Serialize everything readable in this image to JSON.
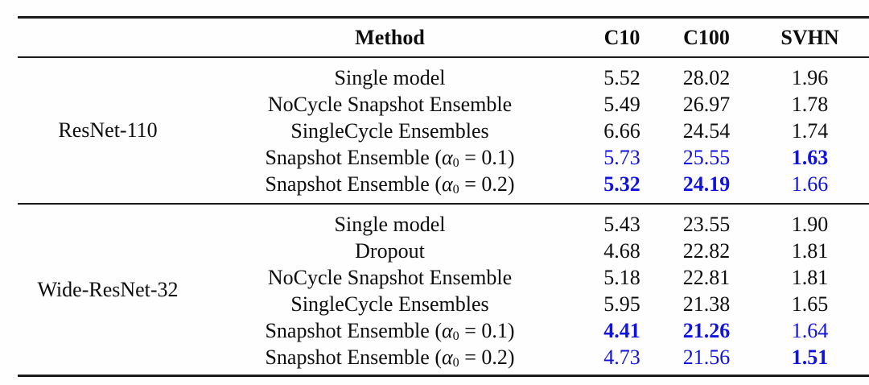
{
  "colors": {
    "highlight_blue": "#1212dd",
    "text_black": "#0d0d0d",
    "rule_black": "#1b1b1b",
    "background": "#fefefe"
  },
  "table": {
    "headers": {
      "method": "Method",
      "cols": [
        "C10",
        "C100",
        "SVHN"
      ]
    },
    "groups": [
      {
        "name": "ResNet-110",
        "rows": [
          {
            "method": "Single model",
            "values": [
              {
                "v": "5.52"
              },
              {
                "v": "28.02"
              },
              {
                "v": "1.96"
              }
            ]
          },
          {
            "method": "NoCycle Snapshot Ensemble",
            "values": [
              {
                "v": "5.49"
              },
              {
                "v": "26.97"
              },
              {
                "v": "1.78"
              }
            ]
          },
          {
            "method": "SingleCycle Ensembles",
            "values": [
              {
                "v": "6.66"
              },
              {
                "v": "24.54"
              },
              {
                "v": "1.74"
              }
            ]
          },
          {
            "method": "Snapshot Ensemble (α₀ = 0.1)",
            "values": [
              {
                "v": "5.73",
                "blue": true
              },
              {
                "v": "25.55",
                "blue": true
              },
              {
                "v": "1.63",
                "blue": true,
                "bold": true
              }
            ]
          },
          {
            "method": "Snapshot Ensemble (α₀ = 0.2)",
            "values": [
              {
                "v": "5.32",
                "blue": true,
                "bold": true
              },
              {
                "v": "24.19",
                "blue": true,
                "bold": true
              },
              {
                "v": "1.66",
                "blue": true
              }
            ]
          }
        ]
      },
      {
        "name": "Wide-ResNet-32",
        "rows": [
          {
            "method": "Single model",
            "values": [
              {
                "v": "5.43"
              },
              {
                "v": "23.55"
              },
              {
                "v": "1.90"
              }
            ]
          },
          {
            "method": "Dropout",
            "values": [
              {
                "v": "4.68"
              },
              {
                "v": "22.82"
              },
              {
                "v": "1.81"
              }
            ]
          },
          {
            "method": "NoCycle Snapshot Ensemble",
            "values": [
              {
                "v": "5.18"
              },
              {
                "v": "22.81"
              },
              {
                "v": "1.81"
              }
            ]
          },
          {
            "method": "SingleCycle Ensembles",
            "values": [
              {
                "v": "5.95"
              },
              {
                "v": "21.38"
              },
              {
                "v": "1.65"
              }
            ]
          },
          {
            "method": "Snapshot Ensemble (α₀ = 0.1)",
            "values": [
              {
                "v": "4.41",
                "blue": true,
                "bold": true
              },
              {
                "v": "21.26",
                "blue": true,
                "bold": true
              },
              {
                "v": "1.64",
                "blue": true
              }
            ]
          },
          {
            "method": "Snapshot Ensemble (α₀ = 0.2)",
            "values": [
              {
                "v": "4.73",
                "blue": true
              },
              {
                "v": "21.56",
                "blue": true
              },
              {
                "v": "1.51",
                "blue": true,
                "bold": true
              }
            ]
          }
        ]
      }
    ]
  }
}
